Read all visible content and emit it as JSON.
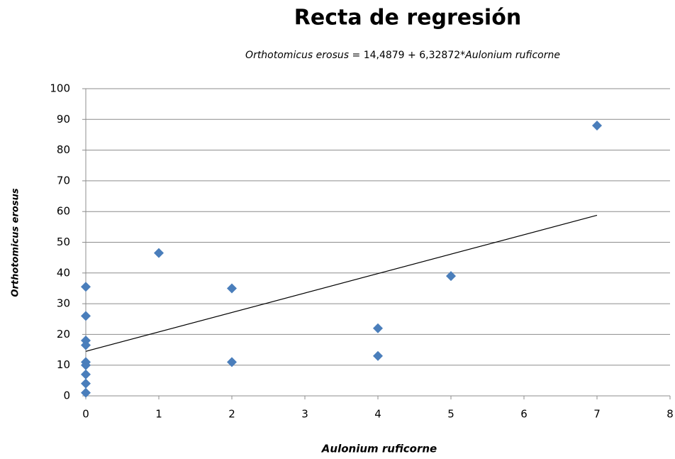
{
  "chart_data": {
    "type": "scatter",
    "title": "Recta de regresión",
    "equation": {
      "lhs": "Orthotomicus erosus",
      "eq": "=",
      "intercept": {
        "value": 14.4879,
        "label": "14,4879"
      },
      "plus": "+",
      "slope": {
        "value": 6.32872,
        "label": "6,32872"
      },
      "times": "*",
      "rhs": "Aulonium ruficorne"
    },
    "x_label": "Aulonium ruficorne",
    "y_label": "Orthotomicus erosus",
    "series": [
      {
        "name": "Orthotomicus erosus",
        "color": "#4a7ebb",
        "x": [
          0,
          0,
          0,
          0,
          0,
          0,
          0,
          0,
          0,
          1,
          2,
          2,
          4,
          4,
          5,
          7
        ],
        "values": [
          35.5,
          26,
          18,
          16.5,
          11,
          10,
          7,
          4,
          1,
          46.5,
          35,
          11,
          22,
          13,
          39,
          88
        ]
      }
    ],
    "line_color": "#000000",
    "xlim": [
      0,
      8
    ],
    "xticks": [
      0,
      1,
      2,
      3,
      4,
      5,
      6,
      7,
      8
    ],
    "ylim": [
      0,
      100
    ],
    "yticks": [
      0,
      10,
      20,
      30,
      40,
      50,
      60,
      70,
      80,
      90,
      100
    ],
    "grid": true
  }
}
